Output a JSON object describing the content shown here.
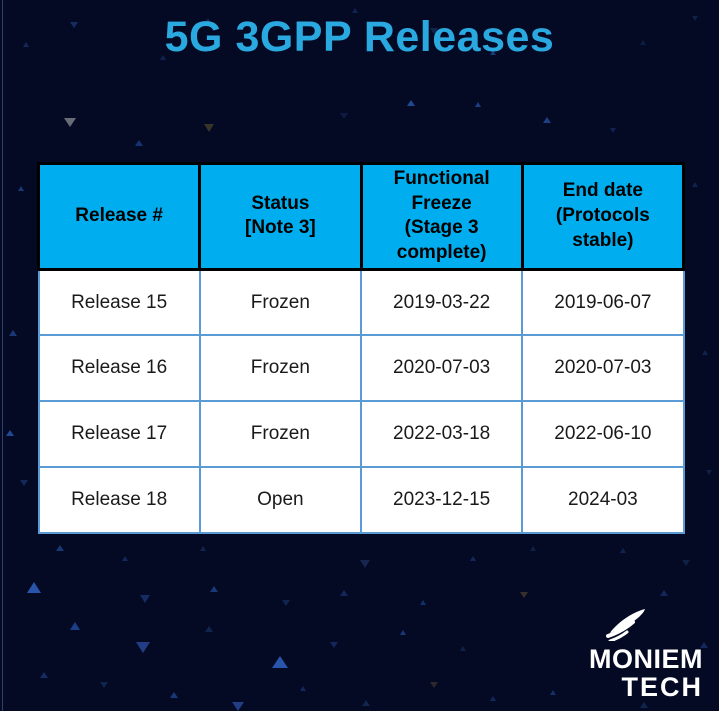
{
  "title": "5G 3GPP Releases",
  "colors": {
    "background_navy": "#050a24",
    "title_blue": "#2aa9e1",
    "header_cyan": "#00aeef",
    "header_border_black": "#000000",
    "body_border_blue": "#5b9bd5",
    "cell_bg_white": "#ffffff",
    "cell_text": "#1a1a1a",
    "logo_white": "#ffffff"
  },
  "table": {
    "columns": [
      "Release #",
      "Status\n[Note 3]",
      "Functional\nFreeze\n(Stage 3\ncomplete)",
      "End date\n(Protocols\nstable)"
    ],
    "rows": [
      [
        "Release 15",
        "Frozen",
        "2019-03-22",
        "2019-06-07"
      ],
      [
        "Release 16",
        "Frozen",
        "2020-07-03",
        "2020-07-03"
      ],
      [
        "Release 17",
        "Frozen",
        "2022-03-18",
        "2022-06-10"
      ],
      [
        "Release 18",
        "Open",
        "2023-12-15",
        "2024-03"
      ]
    ]
  },
  "logo": {
    "line1": "MONIEM",
    "line2": "TECH",
    "icon": "signal-fin-icon"
  }
}
